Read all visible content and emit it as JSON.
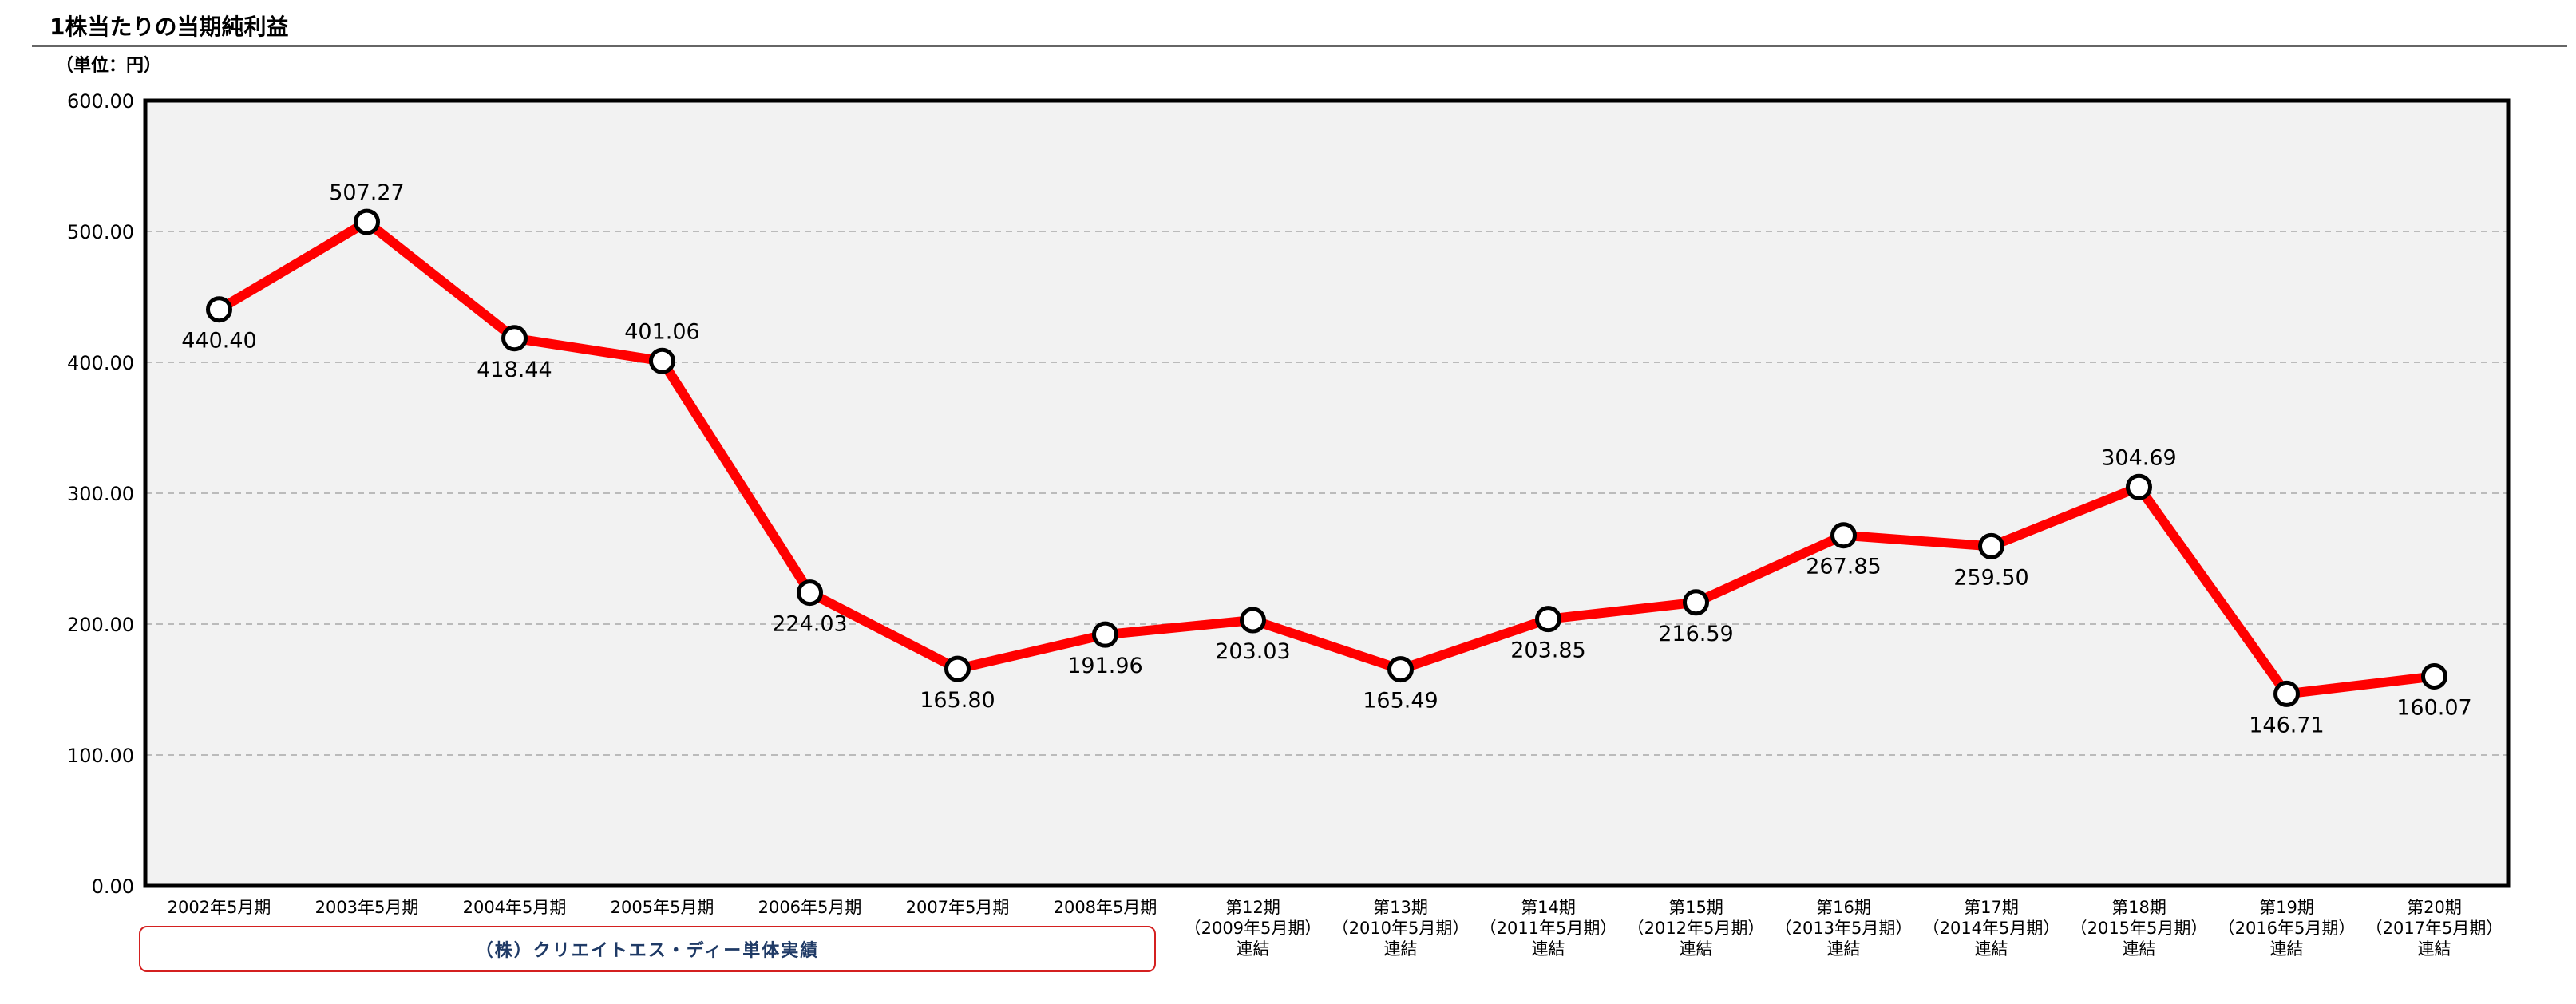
{
  "header": {
    "title": "1株当たりの当期純利益",
    "unit": "（単位：円）"
  },
  "group_label": "（株）クリエイトエス・ディー単体実績",
  "colors": {
    "line": "#ff0000",
    "marker_fill": "#ffffff",
    "marker_stroke": "#000000",
    "plot_bg": "#f2f2f2",
    "group_box_border": "#d42020",
    "group_label_text": "#1f3a66"
  },
  "chart_data": {
    "type": "line",
    "ylim": [
      0,
      600
    ],
    "yticks": [
      "0.00",
      "100.00",
      "200.00",
      "300.00",
      "400.00",
      "500.00",
      "600.00"
    ],
    "grid": true,
    "categories": [
      [
        "2002年5月期"
      ],
      [
        "2003年5月期"
      ],
      [
        "2004年5月期"
      ],
      [
        "2005年5月期"
      ],
      [
        "2006年5月期"
      ],
      [
        "2007年5月期"
      ],
      [
        "2008年5月期"
      ],
      [
        "第12期",
        "（2009年5月期）",
        "連結"
      ],
      [
        "第13期",
        "（2010年5月期）",
        "連結"
      ],
      [
        "第14期",
        "（2011年5月期）",
        "連結"
      ],
      [
        "第15期",
        "（2012年5月期）",
        "連結"
      ],
      [
        "第16期",
        "（2013年5月期）",
        "連結"
      ],
      [
        "第17期",
        "（2014年5月期）",
        "連結"
      ],
      [
        "第18期",
        "（2015年5月期）",
        "連結"
      ],
      [
        "第19期",
        "（2016年5月期）",
        "連結"
      ],
      [
        "第20期",
        "（2017年5月期）",
        "連結"
      ]
    ],
    "values": [
      440.4,
      507.27,
      418.44,
      401.06,
      224.03,
      165.8,
      191.96,
      203.03,
      165.49,
      203.85,
      216.59,
      267.85,
      259.5,
      304.69,
      146.71,
      160.07
    ],
    "labels": [
      "440.40",
      "507.27",
      "418.44",
      "401.06",
      "224.03",
      "165.80",
      "191.96",
      "203.03",
      "165.49",
      "203.85",
      "216.59",
      "267.85",
      "259.50",
      "304.69",
      "146.71",
      "160.07"
    ],
    "label_positions": [
      "below",
      "above",
      "below",
      "above",
      "below",
      "below",
      "below",
      "below",
      "below",
      "below",
      "below",
      "below",
      "below",
      "above",
      "below",
      "below"
    ]
  }
}
